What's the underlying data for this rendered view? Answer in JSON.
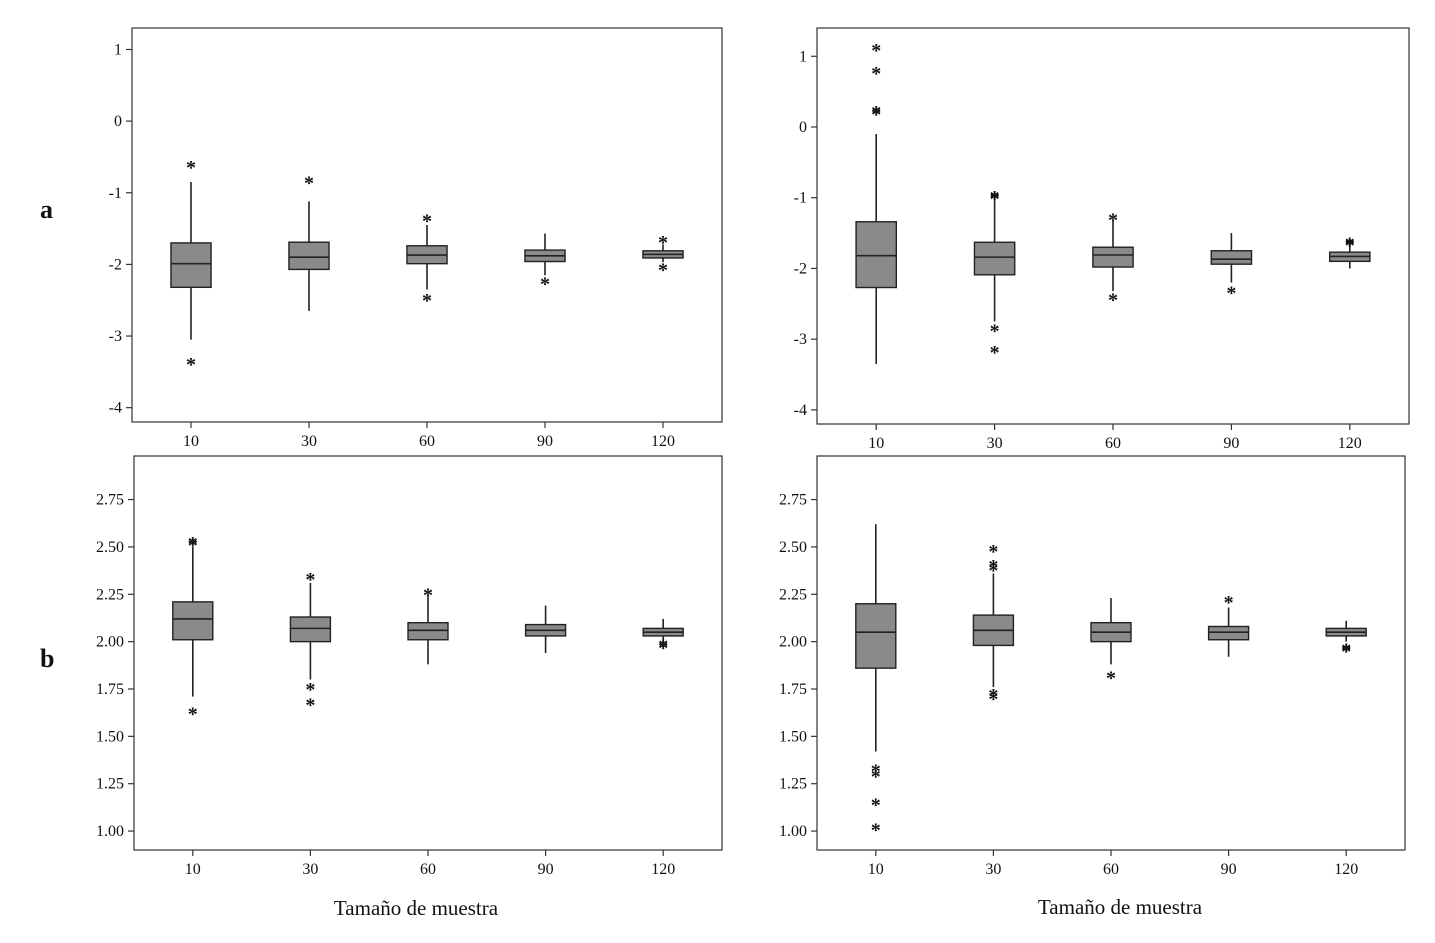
{
  "row_labels": [
    "a",
    "b"
  ],
  "chart_data": [
    {
      "type": "boxplot",
      "row_label": "a",
      "xlabel": "",
      "ylabel": "",
      "categories": [
        "10",
        "30",
        "60",
        "90",
        "120"
      ],
      "ylim": [
        -4.2,
        1.3
      ],
      "yticks": [
        1,
        0,
        -1,
        -2,
        -3,
        -4
      ],
      "ytick_labels": [
        "1",
        "0",
        "-1",
        "-2",
        "-3",
        "-4"
      ],
      "boxes": [
        {
          "whislo": -3.05,
          "q1": -2.32,
          "med": -1.99,
          "q3": -1.7,
          "whishi": -0.85,
          "outliers": [
            -0.61,
            -3.36
          ]
        },
        {
          "whislo": -2.65,
          "q1": -2.07,
          "med": -1.9,
          "q3": -1.69,
          "whishi": -1.12,
          "outliers": [
            -0.83
          ]
        },
        {
          "whislo": -2.35,
          "q1": -1.99,
          "med": -1.87,
          "q3": -1.74,
          "whishi": -1.45,
          "outliers": [
            -1.36,
            -2.47
          ]
        },
        {
          "whislo": -2.15,
          "q1": -1.96,
          "med": -1.88,
          "q3": -1.8,
          "whishi": -1.57,
          "outliers": [
            -2.24
          ]
        },
        {
          "whislo": -1.97,
          "q1": -1.91,
          "med": -1.86,
          "q3": -1.81,
          "whishi": -1.72,
          "outliers": [
            -1.66,
            -2.04
          ]
        }
      ]
    },
    {
      "type": "boxplot",
      "row_label": "a",
      "xlabel": "",
      "ylabel": "",
      "categories": [
        "10",
        "30",
        "60",
        "90",
        "120"
      ],
      "ylim": [
        -4.2,
        1.4
      ],
      "yticks": [
        1,
        0,
        -1,
        -2,
        -3,
        -4
      ],
      "ytick_labels": [
        "1",
        "0",
        "-1",
        "-2",
        "-3",
        "-4"
      ],
      "boxes": [
        {
          "whislo": -3.35,
          "q1": -2.27,
          "med": -1.82,
          "q3": -1.34,
          "whishi": -0.1,
          "outliers": [
            1.12,
            0.79,
            0.24,
            0.21
          ]
        },
        {
          "whislo": -2.75,
          "q1": -2.09,
          "med": -1.84,
          "q3": -1.63,
          "whishi": -1.02,
          "outliers": [
            -0.96,
            -0.98,
            -2.85,
            -3.15
          ]
        },
        {
          "whislo": -2.32,
          "q1": -1.98,
          "med": -1.81,
          "q3": -1.7,
          "whishi": -1.32,
          "outliers": [
            -1.28,
            -2.41
          ]
        },
        {
          "whislo": -2.2,
          "q1": -1.94,
          "med": -1.87,
          "q3": -1.75,
          "whishi": -1.5,
          "outliers": [
            -2.31
          ]
        },
        {
          "whislo": -2.0,
          "q1": -1.9,
          "med": -1.83,
          "q3": -1.77,
          "whishi": -1.65,
          "outliers": [
            -1.62,
            -1.64
          ]
        }
      ]
    },
    {
      "type": "boxplot",
      "row_label": "b",
      "xlabel": "Tamaño de muestra",
      "ylabel": "",
      "categories": [
        "10",
        "30",
        "60",
        "90",
        "120"
      ],
      "ylim": [
        0.9,
        2.98
      ],
      "yticks": [
        2.75,
        2.5,
        2.25,
        2.0,
        1.75,
        1.5,
        1.25,
        1.0
      ],
      "ytick_labels": [
        "2.75",
        "2.50",
        "2.25",
        "2.00",
        "1.75",
        "1.50",
        "1.25",
        "1.00"
      ],
      "boxes": [
        {
          "whislo": 1.71,
          "q1": 2.01,
          "med": 2.12,
          "q3": 2.21,
          "whishi": 2.5,
          "outliers": [
            2.53,
            2.52,
            1.63
          ]
        },
        {
          "whislo": 1.8,
          "q1": 2.0,
          "med": 2.07,
          "q3": 2.13,
          "whishi": 2.31,
          "outliers": [
            2.34,
            1.76,
            1.68
          ]
        },
        {
          "whislo": 1.88,
          "q1": 2.01,
          "med": 2.06,
          "q3": 2.1,
          "whishi": 2.24,
          "outliers": [
            2.26
          ]
        },
        {
          "whislo": 1.94,
          "q1": 2.03,
          "med": 2.06,
          "q3": 2.09,
          "whishi": 2.19,
          "outliers": []
        },
        {
          "whislo": 2.0,
          "q1": 2.03,
          "med": 2.05,
          "q3": 2.07,
          "whishi": 2.12,
          "outliers": [
            1.98,
            1.99
          ]
        }
      ]
    },
    {
      "type": "boxplot",
      "row_label": "b",
      "xlabel": "Tamaño de muestra",
      "ylabel": "",
      "categories": [
        "10",
        "30",
        "60",
        "90",
        "120"
      ],
      "ylim": [
        0.9,
        2.98
      ],
      "yticks": [
        2.75,
        2.5,
        2.25,
        2.0,
        1.75,
        1.5,
        1.25,
        1.0
      ],
      "ytick_labels": [
        "2.75",
        "2.50",
        "2.25",
        "2.00",
        "1.75",
        "1.50",
        "1.25",
        "1.00"
      ],
      "boxes": [
        {
          "whislo": 1.42,
          "q1": 1.86,
          "med": 2.05,
          "q3": 2.2,
          "whishi": 2.62,
          "outliers": [
            1.33,
            1.3,
            1.15,
            1.02
          ]
        },
        {
          "whislo": 1.76,
          "q1": 1.98,
          "med": 2.06,
          "q3": 2.14,
          "whishi": 2.36,
          "outliers": [
            2.49,
            2.41,
            2.39,
            1.73,
            1.71
          ]
        },
        {
          "whislo": 1.88,
          "q1": 2.0,
          "med": 2.05,
          "q3": 2.1,
          "whishi": 2.23,
          "outliers": [
            1.82
          ]
        },
        {
          "whislo": 1.92,
          "q1": 2.01,
          "med": 2.05,
          "q3": 2.08,
          "whishi": 2.18,
          "outliers": [
            2.22
          ]
        },
        {
          "whislo": 2.0,
          "q1": 2.03,
          "med": 2.05,
          "q3": 2.07,
          "whishi": 2.11,
          "outliers": [
            1.97,
            1.96
          ]
        }
      ]
    }
  ]
}
